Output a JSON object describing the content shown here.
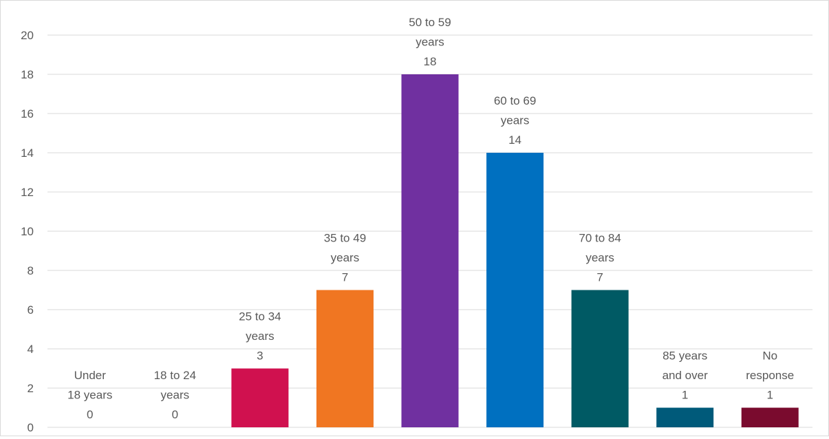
{
  "chart_data": {
    "type": "bar",
    "categories": [
      "Under 18 years",
      "18 to 24 years",
      "25 to 34 years",
      "35 to 49 years",
      "50 to 59 years",
      "60 to 69 years",
      "70 to 84 years",
      "85 years and over",
      "No response"
    ],
    "label_lines": [
      [
        "Under",
        "18 years"
      ],
      [
        "18 to 24",
        "years"
      ],
      [
        "25 to 34",
        "years"
      ],
      [
        "35 to 49",
        "years"
      ],
      [
        "50 to 59",
        "years"
      ],
      [
        "60 to 69",
        "years"
      ],
      [
        "70 to 84",
        "years"
      ],
      [
        "85 years",
        "and over"
      ],
      [
        "No",
        "response"
      ]
    ],
    "values": [
      0,
      0,
      3,
      7,
      18,
      14,
      7,
      1,
      1
    ],
    "colors": [
      "#c8c8c8",
      "#c8c8c8",
      "#d0114f",
      "#f07622",
      "#7030a0",
      "#0070c0",
      "#005a64",
      "#005a7a",
      "#7a0b2e"
    ],
    "yticks": [
      0,
      2,
      4,
      6,
      8,
      10,
      12,
      14,
      16,
      18,
      20
    ],
    "ylim": [
      0,
      20
    ],
    "grid": true,
    "legend": "none",
    "title": "",
    "xlabel": "",
    "ylabel": ""
  }
}
